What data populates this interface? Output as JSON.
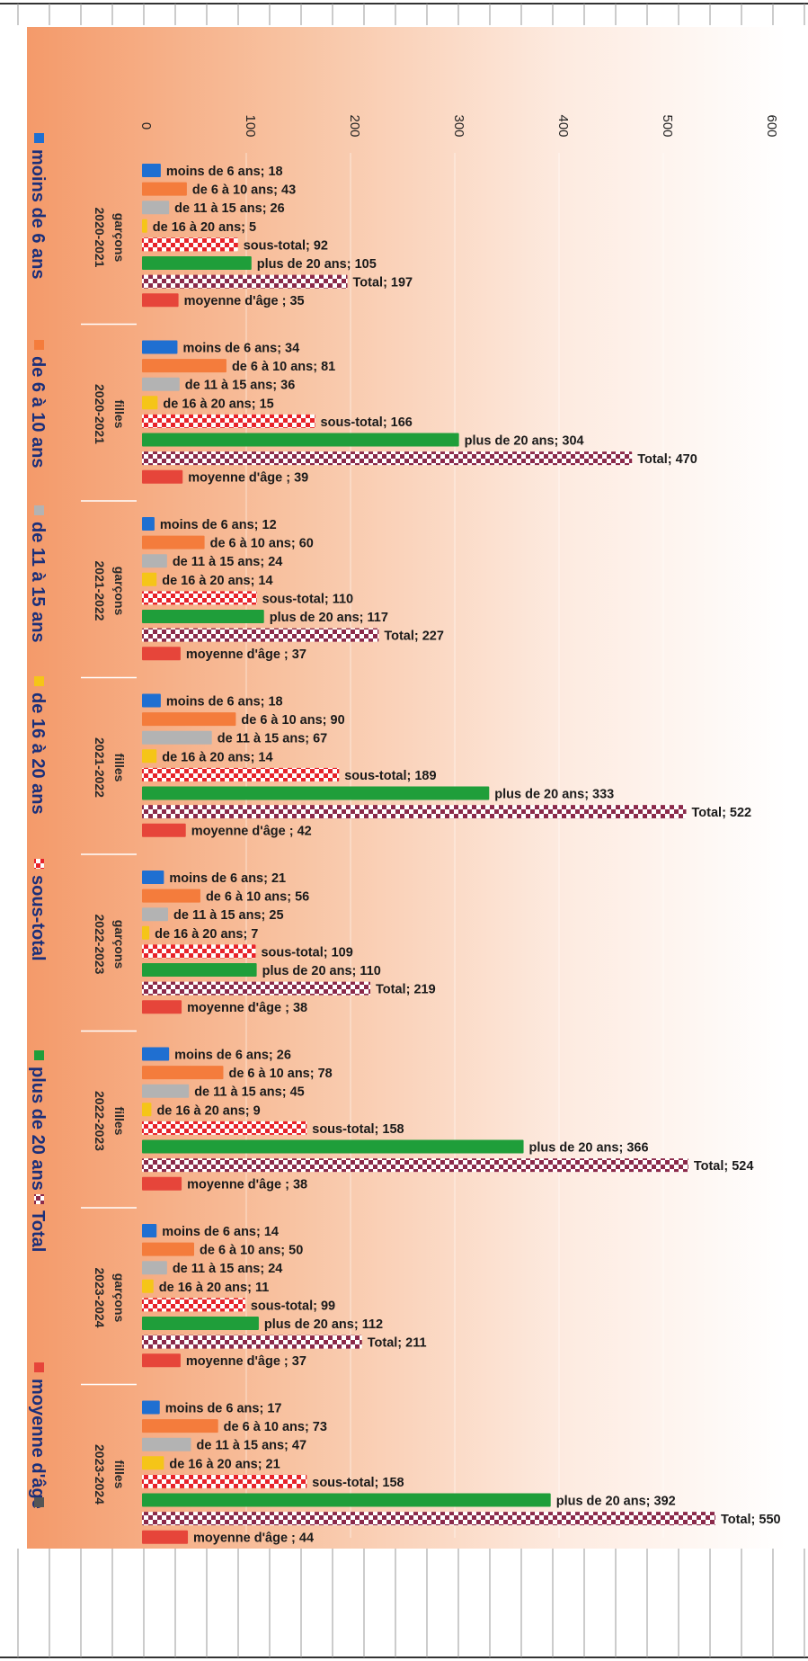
{
  "chart_data": {
    "type": "bar",
    "orientation": "horizontal (rotated page)",
    "xlim": [
      0,
      600
    ],
    "ticks": [
      0,
      100,
      200,
      300,
      400,
      500,
      600
    ],
    "grid": true,
    "legend_position": "left",
    "legend": [
      {
        "name": "moins de 6 ans",
        "color": "#1f6fd1"
      },
      {
        "name": "de 6 à 10 ans",
        "color": "#f47c3c"
      },
      {
        "name": "de 11 à 15 ans",
        "color": "#b3b3b3"
      },
      {
        "name": "de 16 à 20 ans",
        "color": "#f5c518"
      },
      {
        "name": "sous-total",
        "color": "#e8232a",
        "pattern": "checker"
      },
      {
        "name": "plus de 20 ans",
        "color": "#1f9e3a"
      },
      {
        "name": "Total",
        "color": "#8b2a4a",
        "pattern": "checker"
      },
      {
        "name": "moyenne d'âge",
        "color": "#e6453a"
      },
      {
        "name": "",
        "color": "#555555"
      }
    ],
    "groups": [
      {
        "year": "2020-2021",
        "gender": "garçons",
        "bars": [
          {
            "label": "moins de 6 ans",
            "value": 18,
            "text": "moins de 6 ans;  18"
          },
          {
            "label": "de 6 à 10 ans",
            "value": 43,
            "text": "de 6 à 10 ans;  43"
          },
          {
            "label": "de 11 à 15 ans",
            "value": 26,
            "text": "de 11 à 15 ans;  26"
          },
          {
            "label": "de 16 à 20 ans",
            "value": 5,
            "text": "de 16 à 20 ans;  5"
          },
          {
            "label": "sous-total",
            "value": 92,
            "text": "sous-total;  92"
          },
          {
            "label": "plus de 20 ans",
            "value": 105,
            "text": "plus de 20 ans;  105"
          },
          {
            "label": "Total",
            "value": 197,
            "text": "Total;  197"
          },
          {
            "label": "moyenne d'âge",
            "value": 35,
            "text": "moyenne d'âge ;  35"
          }
        ]
      },
      {
        "year": "2020-2021",
        "gender": "filles",
        "bars": [
          {
            "label": "moins de 6 ans",
            "value": 34,
            "text": "moins de 6 ans;  34"
          },
          {
            "label": "de 6 à 10 ans",
            "value": 81,
            "text": "de 6 à 10 ans;  81"
          },
          {
            "label": "de 11 à 15 ans",
            "value": 36,
            "text": "de 11 à 15 ans;  36"
          },
          {
            "label": "de 16 à 20 ans",
            "value": 15,
            "text": "de 16 à 20 ans;  15"
          },
          {
            "label": "sous-total",
            "value": 166,
            "text": "sous-total;  166"
          },
          {
            "label": "plus de 20 ans",
            "value": 304,
            "text": "plus de 20 ans;  304"
          },
          {
            "label": "Total",
            "value": 470,
            "text": "Total;  470"
          },
          {
            "label": "moyenne d'âge",
            "value": 39,
            "text": "moyenne d'âge ;  39"
          }
        ]
      },
      {
        "year": "2021-2022",
        "gender": "garçons",
        "bars": [
          {
            "label": "moins de 6 ans",
            "value": 12,
            "text": "moins de 6 ans;  12"
          },
          {
            "label": "de 6 à 10 ans",
            "value": 60,
            "text": "de 6 à 10 ans;  60"
          },
          {
            "label": "de 11 à 15 ans",
            "value": 24,
            "text": "de 11 à 15 ans;  24"
          },
          {
            "label": "de 16 à 20 ans",
            "value": 14,
            "text": "de 16 à 20 ans;  14"
          },
          {
            "label": "sous-total",
            "value": 110,
            "text": "sous-total;  110"
          },
          {
            "label": "plus de 20 ans",
            "value": 117,
            "text": "plus de 20 ans;  117"
          },
          {
            "label": "Total",
            "value": 227,
            "text": "Total;  227"
          },
          {
            "label": "moyenne d'âge",
            "value": 37,
            "text": "moyenne d'âge ;  37"
          }
        ]
      },
      {
        "year": "2021-2022",
        "gender": "filles",
        "bars": [
          {
            "label": "moins de 6 ans",
            "value": 18,
            "text": "moins de 6 ans;  18"
          },
          {
            "label": "de 6 à 10 ans",
            "value": 90,
            "text": "de 6 à 10 ans;  90"
          },
          {
            "label": "de 11 à 15 ans",
            "value": 67,
            "text": "de 11 à 15 ans;  67"
          },
          {
            "label": "de 16 à 20 ans",
            "value": 14,
            "text": "de 16 à 20 ans;  14"
          },
          {
            "label": "sous-total",
            "value": 189,
            "text": "sous-total;  189"
          },
          {
            "label": "plus de 20 ans",
            "value": 333,
            "text": "plus de 20 ans;  333"
          },
          {
            "label": "Total",
            "value": 522,
            "text": "Total;  522"
          },
          {
            "label": "moyenne d'âge",
            "value": 42,
            "text": "moyenne d'âge ;  42"
          }
        ]
      },
      {
        "year": "2022-2023",
        "gender": "garçons",
        "bars": [
          {
            "label": "moins de 6 ans",
            "value": 21,
            "text": "moins de 6 ans;  21"
          },
          {
            "label": "de 6 à 10 ans",
            "value": 56,
            "text": "de 6 à 10 ans;  56"
          },
          {
            "label": "de 11 à 15 ans",
            "value": 25,
            "text": "de 11 à 15 ans;  25"
          },
          {
            "label": "de 16 à 20 ans",
            "value": 7,
            "text": "de 16 à 20 ans;  7"
          },
          {
            "label": "sous-total",
            "value": 109,
            "text": "sous-total;  109"
          },
          {
            "label": "plus de 20 ans",
            "value": 110,
            "text": "plus de 20 ans;  110"
          },
          {
            "label": "Total",
            "value": 219,
            "text": "Total;  219"
          },
          {
            "label": "moyenne d'âge",
            "value": 38,
            "text": "moyenne d'âge ;  38"
          }
        ]
      },
      {
        "year": "2022-2023",
        "gender": "filles",
        "bars": [
          {
            "label": "moins de 6 ans",
            "value": 26,
            "text": "moins de 6 ans;  26"
          },
          {
            "label": "de 6 à 10 ans",
            "value": 78,
            "text": "de 6 à 10 ans;  78"
          },
          {
            "label": "de 11 à 15 ans",
            "value": 45,
            "text": "de 11 à 15 ans;  45"
          },
          {
            "label": "de 16 à 20 ans",
            "value": 9,
            "text": "de 16 à 20 ans;  9"
          },
          {
            "label": "sous-total",
            "value": 158,
            "text": "sous-total;  158"
          },
          {
            "label": "plus de 20 ans",
            "value": 366,
            "text": "plus de 20 ans;  366"
          },
          {
            "label": "Total",
            "value": 524,
            "text": "Total;  524"
          },
          {
            "label": "moyenne d'âge",
            "value": 38,
            "text": "moyenne d'âge ;  38"
          }
        ]
      },
      {
        "year": "2023-2024",
        "gender": "garçons",
        "bars": [
          {
            "label": "moins de 6 ans",
            "value": 14,
            "text": "moins de 6 ans; 14"
          },
          {
            "label": "de 6 à 10 ans",
            "value": 50,
            "text": "de 6 à 10 ans; 50"
          },
          {
            "label": "de 11 à 15 ans",
            "value": 24,
            "text": "de 11 à 15 ans; 24"
          },
          {
            "label": "de 16 à 20 ans",
            "value": 11,
            "text": "de 16 à 20 ans; 11"
          },
          {
            "label": "sous-total",
            "value": 99,
            "text": "sous-total;  99"
          },
          {
            "label": "plus de 20 ans",
            "value": 112,
            "text": "plus de 20 ans; 112"
          },
          {
            "label": "Total",
            "value": 211,
            "text": "Total;  211"
          },
          {
            "label": "moyenne d'âge",
            "value": 37,
            "text": "moyenne d'âge ; 37"
          }
        ]
      },
      {
        "year": "2023-2024",
        "gender": "filles",
        "bars": [
          {
            "label": "moins de 6 ans",
            "value": 17,
            "text": "moins de 6 ans; 17"
          },
          {
            "label": "de 6 à 10 ans",
            "value": 73,
            "text": "de 6 à 10 ans; 73"
          },
          {
            "label": "de 11 à 15 ans",
            "value": 47,
            "text": "de 11 à 15 ans; 47"
          },
          {
            "label": "de 16 à 20 ans",
            "value": 21,
            "text": "de 16 à 20 ans; 21"
          },
          {
            "label": "sous-total",
            "value": 158,
            "text": "sous-total;  158"
          },
          {
            "label": "plus de 20 ans",
            "value": 392,
            "text": "plus de 20 ans; 392"
          },
          {
            "label": "Total",
            "value": 550,
            "text": "Total;  550"
          },
          {
            "label": "moyenne d'âge",
            "value": 44,
            "text": "moyenne d'âge ;  44"
          }
        ]
      }
    ]
  }
}
